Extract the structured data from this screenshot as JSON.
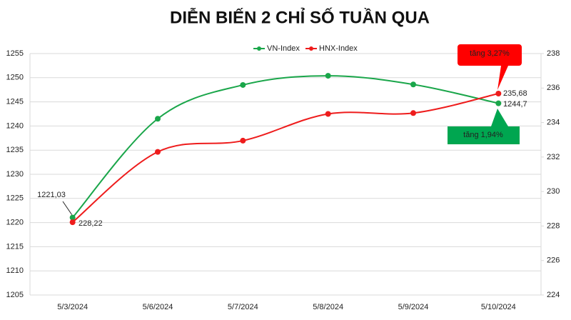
{
  "chart_data": {
    "type": "line",
    "title": "DIỄN BIẾN 2 CHỈ SỐ TUẦN QUA",
    "categories": [
      "5/3/2024",
      "5/6/2024",
      "5/7/2024",
      "5/8/2024",
      "5/9/2024",
      "5/10/2024"
    ],
    "series": [
      {
        "name": "VN-Index",
        "color": "#1aa64a",
        "values": [
          1221.03,
          1241.5,
          1248.5,
          1250.4,
          1248.6,
          1244.7
        ],
        "value_labels": [
          "1221,03",
          null,
          null,
          null,
          null,
          "1244,7"
        ]
      },
      {
        "name": "HNX-Index",
        "color": "#ee1c1c",
        "axis": "y2",
        "values": [
          228.22,
          232.3,
          232.95,
          234.5,
          234.55,
          235.68
        ],
        "value_labels": [
          "228,22",
          null,
          null,
          null,
          null,
          "235,68"
        ]
      }
    ],
    "ylim": [
      1205,
      1255
    ],
    "yticks": [
      1205,
      1210,
      1215,
      1220,
      1225,
      1230,
      1235,
      1240,
      1245,
      1250,
      1255
    ],
    "y2lim": [
      224,
      238
    ],
    "y2ticks": [
      224,
      226,
      228,
      230,
      232,
      234,
      236,
      238
    ],
    "grid": true,
    "legend": "top",
    "annotations": [
      {
        "text": "tăng 3,27%",
        "color": "#ff0000"
      },
      {
        "text": "tăng 1,94%",
        "color": "#00a650"
      }
    ]
  }
}
